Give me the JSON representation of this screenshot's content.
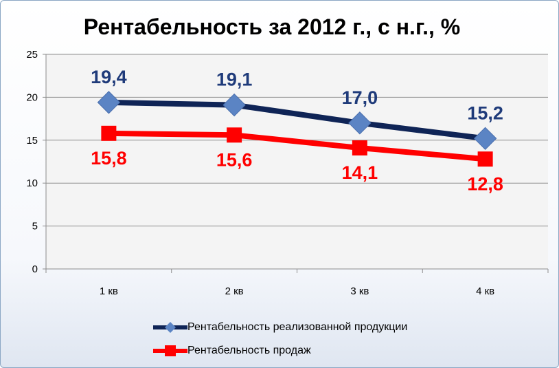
{
  "chart_data": {
    "type": "line",
    "title": "Рентабельность за 2012 г., с н.г., %",
    "categories": [
      "1 кв",
      "2 кв",
      "3 кв",
      "4 кв"
    ],
    "ylim": [
      0,
      25
    ],
    "yticks": [
      0,
      5,
      10,
      15,
      20,
      25
    ],
    "ytick_labels": [
      "0",
      "5",
      "10",
      "15",
      "20",
      "25"
    ],
    "grid": true,
    "legend_position": "bottom",
    "series": [
      {
        "name": "Рентабельность реализованной продукции",
        "values": [
          19.4,
          19.1,
          17.0,
          15.2
        ],
        "labels": [
          "19,4",
          "19,1",
          "17,0",
          "15,2"
        ],
        "line_color": "#0f2456",
        "marker_color": "#5b84c4",
        "marker": "diamond",
        "label_color": "#1f3b7a"
      },
      {
        "name": "Рентабельность продаж",
        "values": [
          15.8,
          15.6,
          14.1,
          12.8
        ],
        "labels": [
          "15,8",
          "15,6",
          "14,1",
          "12,8"
        ],
        "line_color": "#ff0000",
        "marker_color": "#ff0000",
        "marker": "square",
        "label_color": "#ff0000"
      }
    ]
  }
}
